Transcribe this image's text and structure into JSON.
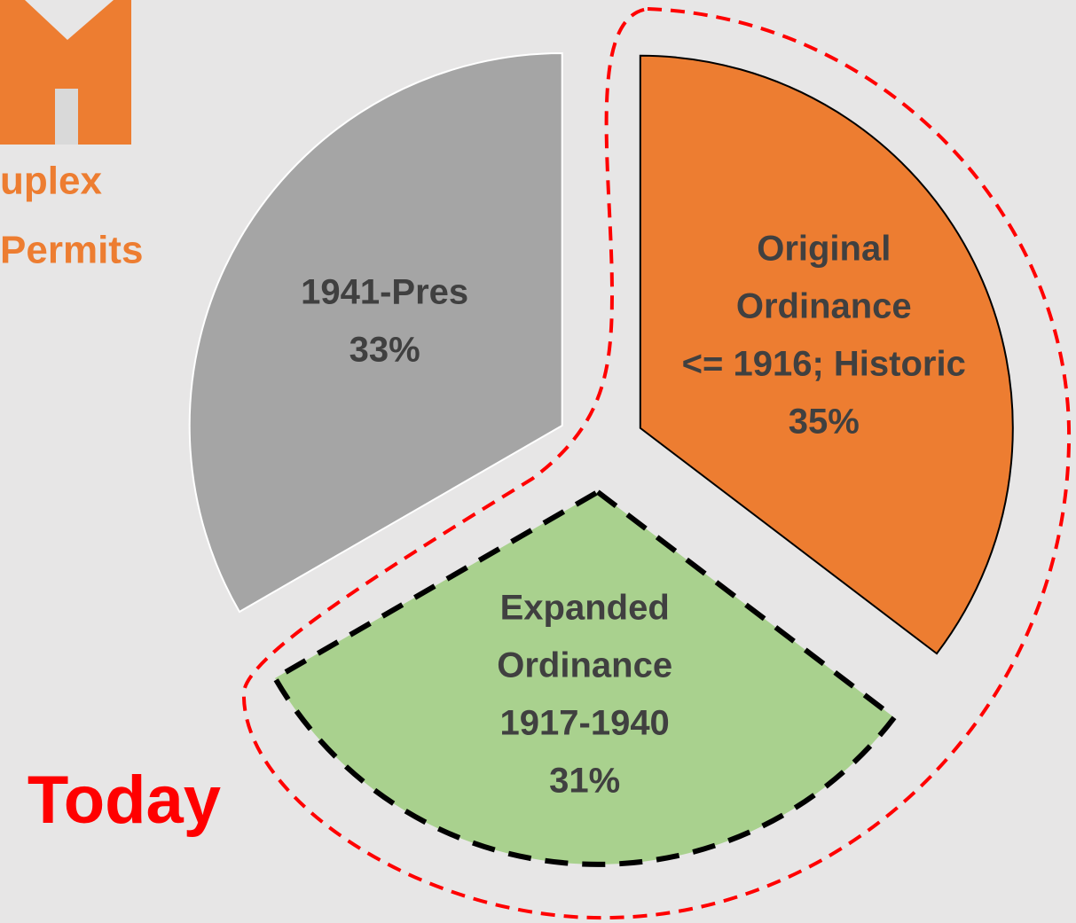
{
  "chart_data": {
    "type": "pie",
    "labels": [
      [
        "Original",
        "Ordinance",
        "<= 1916; Historic"
      ],
      [
        "Expanded",
        "Ordinance",
        "1917-1940"
      ],
      [
        "1941-Pres"
      ]
    ],
    "values": [
      35,
      31,
      33
    ],
    "value_labels": [
      "35%",
      "31%",
      "33%"
    ],
    "colors": [
      "#ed7d31",
      "#a9d18e",
      "#a5a5a5"
    ],
    "exploded": true
  },
  "side_text": {
    "heading": [
      "uplex",
      "Permits"
    ],
    "tag": "Today"
  }
}
